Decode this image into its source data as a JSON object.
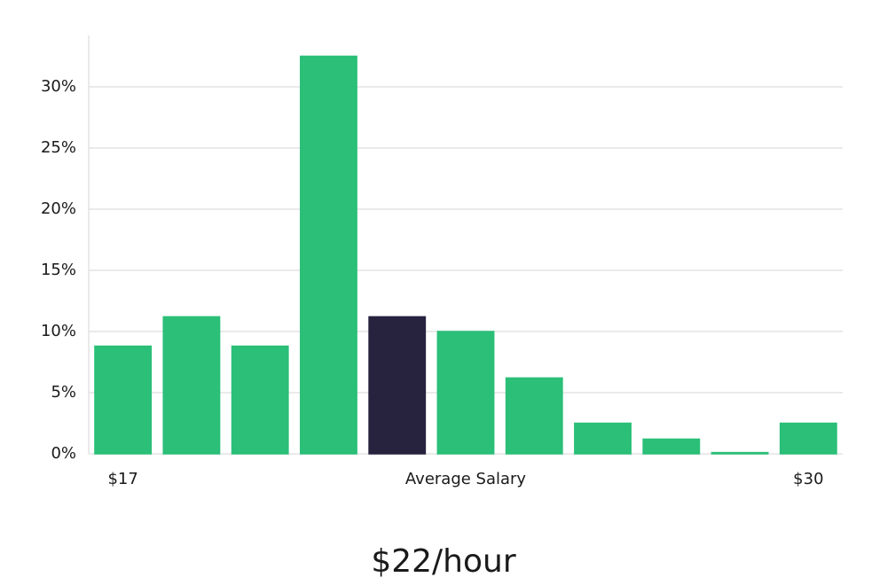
{
  "chart_data": {
    "type": "bar",
    "categories": [
      "$17",
      null,
      null,
      null,
      null,
      null,
      null,
      null,
      null,
      null,
      "$30"
    ],
    "values": [
      8.8,
      11.2,
      8.8,
      32.5,
      11.2,
      10.0,
      6.2,
      2.5,
      1.2,
      0.1,
      2.5
    ],
    "colors": [
      "#2bbf78",
      "#2bbf78",
      "#2bbf78",
      "#2bbf78",
      "#27233f",
      "#2bbf78",
      "#2bbf78",
      "#2bbf78",
      "#2bbf78",
      "#2bbf78",
      "#2bbf78"
    ],
    "x_label": "Average Salary",
    "subtitle": "$22/hour",
    "ylim": [
      0,
      34.2
    ],
    "yticks": [
      {
        "value": 0,
        "label": "0%"
      },
      {
        "value": 5,
        "label": "5%"
      },
      {
        "value": 10,
        "label": "10%"
      },
      {
        "value": 15,
        "label": "15%"
      },
      {
        "value": 20,
        "label": "20%"
      },
      {
        "value": 25,
        "label": "25%"
      },
      {
        "value": 30,
        "label": "30%"
      }
    ],
    "grid": true
  }
}
